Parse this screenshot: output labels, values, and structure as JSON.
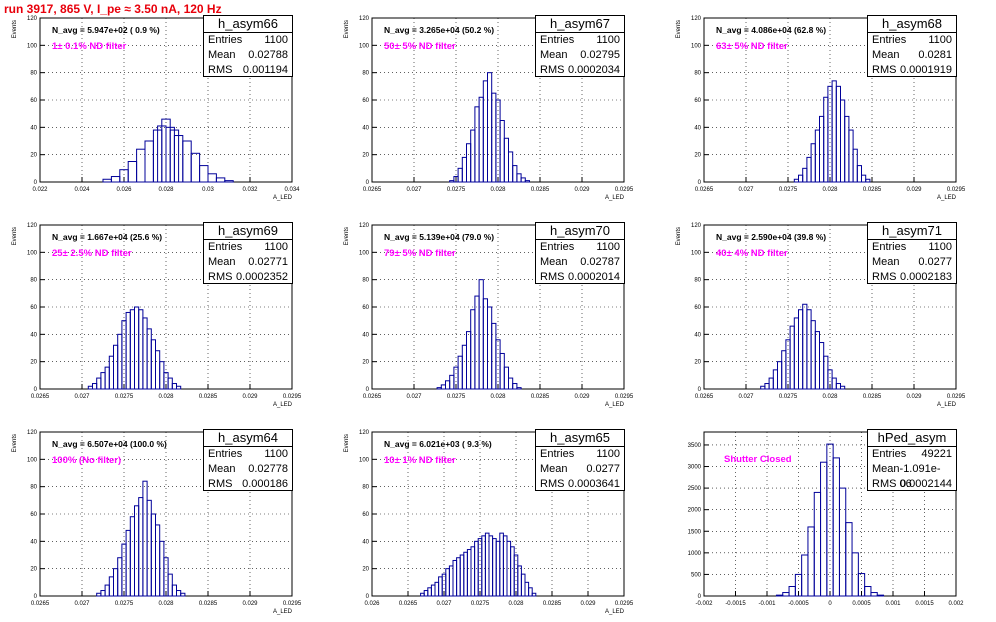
{
  "run_title": "run 3917,   865 V, I_pe ≈ 3.50 nA, 120 Hz",
  "colors": {
    "title": "#e8000b",
    "hist": "#000099",
    "filter": "#ff00ff",
    "grid": "#000000"
  },
  "panels": [
    {
      "name": "h_asym66",
      "navg": "N_avg = 5.947e+02 ( 0.9 %)",
      "filter": "1± 0.1% ND filter",
      "stats": {
        "entries_label": "Entries",
        "entries": "1100",
        "mean_label": "Mean",
        "mean": "0.02788",
        "rms_label": "RMS",
        "rms": "0.001194"
      },
      "ylabel": "Events",
      "xlabel": "A_LED",
      "yticks": [
        "0",
        "20",
        "40",
        "60",
        "80",
        "100",
        "120"
      ],
      "xticks": [
        "0.022",
        "0.024",
        "0.026",
        "0.028",
        "0.03",
        "0.032",
        "0.034"
      ]
    },
    {
      "name": "h_asym67",
      "navg": "N_avg = 3.265e+04 (50.2 %)",
      "filter": "50± 5% ND filter",
      "stats": {
        "entries_label": "Entries",
        "entries": "1100",
        "mean_label": "Mean",
        "mean": "0.02795",
        "rms_label": "RMS",
        "rms": "0.0002034"
      },
      "ylabel": "Events",
      "xlabel": "A_LED",
      "yticks": [
        "0",
        "20",
        "40",
        "60",
        "80",
        "100",
        "120"
      ],
      "xticks": [
        "0.0265",
        "0.027",
        "0.0275",
        "0.028",
        "0.0285",
        "0.029",
        "0.0295"
      ]
    },
    {
      "name": "h_asym68",
      "navg": "N_avg = 4.086e+04 (62.8 %)",
      "filter": "63± 5% ND filter",
      "stats": {
        "entries_label": "Entries",
        "entries": "1100",
        "mean_label": "Mean",
        "mean": "0.0281",
        "rms_label": "RMS",
        "rms": "0.0001919"
      },
      "ylabel": "Events",
      "xlabel": "A_LED",
      "yticks": [
        "0",
        "20",
        "40",
        "60",
        "80",
        "100",
        "120"
      ],
      "xticks": [
        "0.0265",
        "0.027",
        "0.0275",
        "0.028",
        "0.0285",
        "0.029",
        "0.0295"
      ]
    },
    {
      "name": "h_asym69",
      "navg": "N_avg = 1.667e+04 (25.6 %)",
      "filter": "25± 2.5% ND filter",
      "stats": {
        "entries_label": "Entries",
        "entries": "1100",
        "mean_label": "Mean",
        "mean": "0.02771",
        "rms_label": "RMS",
        "rms": "0.0002352"
      },
      "ylabel": "Events",
      "xlabel": "A_LED",
      "yticks": [
        "0",
        "20",
        "40",
        "60",
        "80",
        "100",
        "120"
      ],
      "xticks": [
        "0.0265",
        "0.027",
        "0.0275",
        "0.028",
        "0.0285",
        "0.029",
        "0.0295"
      ]
    },
    {
      "name": "h_asym70",
      "navg": "N_avg = 5.139e+04 (79.0 %)",
      "filter": "79± 5% ND filter",
      "stats": {
        "entries_label": "Entries",
        "entries": "1100",
        "mean_label": "Mean",
        "mean": "0.02787",
        "rms_label": "RMS",
        "rms": "0.0002014"
      },
      "ylabel": "Events",
      "xlabel": "A_LED",
      "yticks": [
        "0",
        "20",
        "40",
        "60",
        "80",
        "100",
        "120"
      ],
      "xticks": [
        "0.0265",
        "0.027",
        "0.0275",
        "0.028",
        "0.0285",
        "0.029",
        "0.0295"
      ]
    },
    {
      "name": "h_asym71",
      "navg": "N_avg = 2.590e+04 (39.8 %)",
      "filter": "40± 4% ND filter",
      "stats": {
        "entries_label": "Entries",
        "entries": "1100",
        "mean_label": "Mean",
        "mean": "0.0277",
        "rms_label": "RMS",
        "rms": "0.0002183"
      },
      "ylabel": "Events",
      "xlabel": "A_LED",
      "yticks": [
        "0",
        "20",
        "40",
        "60",
        "80",
        "100",
        "120"
      ],
      "xticks": [
        "0.0265",
        "0.027",
        "0.0275",
        "0.028",
        "0.0285",
        "0.029",
        "0.0295"
      ]
    },
    {
      "name": "h_asym64",
      "navg": "N_avg = 6.507e+04 (100.0 %)",
      "filter": "100% (No filter)",
      "stats": {
        "entries_label": "Entries",
        "entries": "1100",
        "mean_label": "Mean",
        "mean": "0.02778",
        "rms_label": "RMS",
        "rms": "0.000186"
      },
      "ylabel": "Events",
      "xlabel": "A_LED",
      "yticks": [
        "0",
        "20",
        "40",
        "60",
        "80",
        "100",
        "120"
      ],
      "xticks": [
        "0.0265",
        "0.027",
        "0.0275",
        "0.028",
        "0.0285",
        "0.029",
        "0.0295"
      ]
    },
    {
      "name": "h_asym65",
      "navg": "N_avg = 6.021e+03 ( 9.3 %)",
      "filter": "10± 1% ND filter",
      "stats": {
        "entries_label": "Entries",
        "entries": "1100",
        "mean_label": "Mean",
        "mean": "0.0277",
        "rms_label": "RMS",
        "rms": "0.0003641"
      },
      "ylabel": "Events",
      "xlabel": "A_LED",
      "yticks": [
        "0",
        "20",
        "40",
        "60",
        "80",
        "100",
        "120"
      ],
      "xticks": [
        "0.026",
        "0.0265",
        "0.027",
        "0.0275",
        "0.028",
        "0.0285",
        "0.029",
        "0.0295"
      ]
    },
    {
      "name": "hPed_asym",
      "navg": "",
      "filter": "Shutter Closed",
      "stats": {
        "entries_label": "Entries",
        "entries": "49221",
        "mean_label": "Mean",
        "mean": "-1.091e-06",
        "rms_label": "RMS",
        "rms": "0.0002144"
      },
      "ylabel": "",
      "xlabel": "",
      "yticks": [
        "0",
        "500",
        "1000",
        "1500",
        "2000",
        "2500",
        "3000",
        "3500"
      ],
      "xticks": [
        "-0.002",
        "-0.0015",
        "-0.001",
        "-0.0005",
        "0",
        "0.0005",
        "0.001",
        "0.0015",
        "0.002"
      ]
    }
  ],
  "chart_data": [
    {
      "type": "bar",
      "title": "h_asym66",
      "ylabel": "Events",
      "xlabel": "A_LED",
      "xlim": [
        0.022,
        0.034
      ],
      "ylim": [
        0,
        120
      ],
      "grid": true,
      "x": [
        0.0252,
        0.0256,
        0.026,
        0.0264,
        0.0268,
        0.0272,
        0.0276,
        0.0278,
        0.028,
        0.0282,
        0.0284,
        0.0286,
        0.029,
        0.0294,
        0.0298,
        0.0302,
        0.0306,
        0.031
      ],
      "values": [
        2,
        4,
        9,
        15,
        24,
        30,
        38,
        41,
        46,
        40,
        38,
        34,
        30,
        21,
        12,
        6,
        3,
        1
      ]
    },
    {
      "type": "bar",
      "title": "h_asym67",
      "ylabel": "Events",
      "xlabel": "A_LED",
      "xlim": [
        0.0265,
        0.0295
      ],
      "ylim": [
        0,
        120
      ],
      "grid": true,
      "x": [
        0.02745,
        0.0275,
        0.02755,
        0.0276,
        0.02765,
        0.0277,
        0.02775,
        0.0278,
        0.02785,
        0.0279,
        0.02795,
        0.028,
        0.02805,
        0.0281,
        0.02815,
        0.0282,
        0.02825,
        0.0283,
        0.02835
      ],
      "values": [
        1,
        4,
        10,
        18,
        28,
        38,
        55,
        62,
        74,
        80,
        65,
        60,
        45,
        32,
        22,
        12,
        6,
        3,
        1
      ]
    },
    {
      "type": "bar",
      "title": "h_asym68",
      "ylabel": "Events",
      "xlabel": "A_LED",
      "xlim": [
        0.0265,
        0.0295
      ],
      "ylim": [
        0,
        120
      ],
      "grid": true,
      "x": [
        0.0276,
        0.02765,
        0.0277,
        0.02775,
        0.0278,
        0.02785,
        0.0279,
        0.02795,
        0.028,
        0.02805,
        0.0281,
        0.02815,
        0.0282,
        0.02825,
        0.0283,
        0.02835,
        0.0284,
        0.02845
      ],
      "values": [
        2,
        5,
        10,
        18,
        28,
        38,
        48,
        62,
        70,
        74,
        70,
        60,
        48,
        38,
        24,
        12,
        5,
        2
      ]
    },
    {
      "type": "bar",
      "title": "h_asym69",
      "ylabel": "Events",
      "xlabel": "A_LED",
      "xlim": [
        0.0265,
        0.0295
      ],
      "ylim": [
        0,
        120
      ],
      "grid": true,
      "x": [
        0.0271,
        0.02715,
        0.0272,
        0.02725,
        0.0273,
        0.02735,
        0.0274,
        0.02745,
        0.0275,
        0.02755,
        0.0276,
        0.02765,
        0.0277,
        0.02775,
        0.0278,
        0.02785,
        0.0279,
        0.02795,
        0.028,
        0.02805,
        0.0281,
        0.02815
      ],
      "values": [
        2,
        4,
        8,
        12,
        16,
        24,
        32,
        40,
        50,
        56,
        58,
        60,
        58,
        52,
        44,
        36,
        28,
        20,
        12,
        8,
        4,
        2
      ]
    },
    {
      "type": "bar",
      "title": "h_asym70",
      "ylabel": "Events",
      "xlabel": "A_LED",
      "xlim": [
        0.0265,
        0.0295
      ],
      "ylim": [
        0,
        120
      ],
      "grid": true,
      "x": [
        0.0273,
        0.02735,
        0.0274,
        0.02745,
        0.0275,
        0.02755,
        0.0276,
        0.02765,
        0.0277,
        0.02775,
        0.0278,
        0.02785,
        0.0279,
        0.02795,
        0.028,
        0.02805,
        0.0281,
        0.02815,
        0.0282,
        0.02825
      ],
      "values": [
        1,
        3,
        6,
        10,
        16,
        24,
        32,
        42,
        58,
        68,
        80,
        66,
        60,
        48,
        36,
        26,
        16,
        8,
        4,
        1
      ]
    },
    {
      "type": "bar",
      "title": "h_asym71",
      "ylabel": "Events",
      "xlabel": "A_LED",
      "xlim": [
        0.0265,
        0.0295
      ],
      "ylim": [
        0,
        120
      ],
      "grid": true,
      "x": [
        0.0272,
        0.02725,
        0.0273,
        0.02735,
        0.0274,
        0.02745,
        0.0275,
        0.02755,
        0.0276,
        0.02765,
        0.0277,
        0.02775,
        0.0278,
        0.02785,
        0.0279,
        0.02795,
        0.028,
        0.02805,
        0.0281,
        0.02815
      ],
      "values": [
        2,
        4,
        8,
        14,
        20,
        28,
        36,
        46,
        52,
        58,
        62,
        58,
        50,
        42,
        34,
        24,
        14,
        8,
        4,
        2
      ]
    },
    {
      "type": "bar",
      "title": "h_asym64",
      "ylabel": "Events",
      "xlabel": "A_LED",
      "xlim": [
        0.0265,
        0.0295
      ],
      "ylim": [
        0,
        120
      ],
      "grid": true,
      "x": [
        0.0272,
        0.02725,
        0.0273,
        0.02735,
        0.0274,
        0.02745,
        0.0275,
        0.02755,
        0.0276,
        0.02765,
        0.0277,
        0.02775,
        0.0278,
        0.02785,
        0.0279,
        0.02795,
        0.028,
        0.02805,
        0.0281,
        0.02815,
        0.0282
      ],
      "values": [
        2,
        4,
        8,
        14,
        20,
        28,
        38,
        48,
        58,
        66,
        72,
        84,
        70,
        60,
        52,
        40,
        28,
        16,
        8,
        4,
        2
      ]
    },
    {
      "type": "bar",
      "title": "h_asym65",
      "ylabel": "Events",
      "xlabel": "A_LED",
      "xlim": [
        0.026,
        0.0295
      ],
      "ylim": [
        0,
        120
      ],
      "grid": true,
      "x": [
        0.0267,
        0.02675,
        0.0268,
        0.02685,
        0.0269,
        0.02695,
        0.027,
        0.02705,
        0.0271,
        0.02715,
        0.0272,
        0.02725,
        0.0273,
        0.02735,
        0.0274,
        0.02745,
        0.0275,
        0.02755,
        0.0276,
        0.02765,
        0.0277,
        0.02775,
        0.0278,
        0.02785,
        0.0279,
        0.02795,
        0.028,
        0.02805,
        0.0281,
        0.02815,
        0.0282,
        0.02825
      ],
      "values": [
        2,
        4,
        6,
        8,
        10,
        14,
        16,
        20,
        22,
        26,
        28,
        30,
        32,
        34,
        36,
        40,
        42,
        44,
        46,
        44,
        42,
        40,
        46,
        44,
        40,
        36,
        30,
        22,
        16,
        10,
        6,
        2
      ]
    },
    {
      "type": "bar",
      "title": "hPed_asym",
      "xlim": [
        -0.002,
        0.002
      ],
      "ylim": [
        0,
        3800
      ],
      "grid": true,
      "x": [
        -0.0008,
        -0.0007,
        -0.0006,
        -0.0005,
        -0.0004,
        -0.0003,
        -0.0002,
        -0.0001,
        0,
        0.0001,
        0.0002,
        0.0003,
        0.0004,
        0.0005,
        0.0006,
        0.0007,
        0.0008
      ],
      "values": [
        20,
        80,
        220,
        500,
        950,
        1600,
        2400,
        3100,
        3520,
        3200,
        2500,
        1700,
        1000,
        520,
        220,
        80,
        20
      ]
    }
  ]
}
